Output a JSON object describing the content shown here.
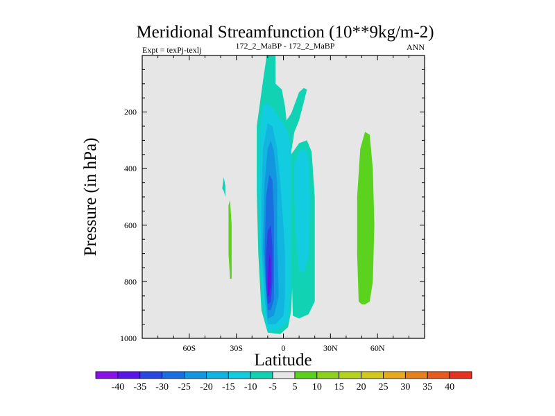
{
  "chart_data": {
    "type": "contour",
    "title": "Meridional Streamfunction (10**9kg/m-2)",
    "subtitle_left": "Expt = texPj-texlj",
    "subtitle_center": "172_2_MaBP - 172_2_MaBP",
    "subtitle_right": "ANN",
    "xlabel": "Latitude",
    "ylabel": "Pressure (in hPa)",
    "xlim": [
      -90,
      90
    ],
    "ylim": [
      1000,
      0
    ],
    "x_ticks": [
      {
        "value": -60,
        "label": "60S"
      },
      {
        "value": -30,
        "label": "30S"
      },
      {
        "value": 0,
        "label": "0"
      },
      {
        "value": 30,
        "label": "30N"
      },
      {
        "value": 60,
        "label": "60N"
      }
    ],
    "y_ticks": [
      {
        "value": 200,
        "label": "200"
      },
      {
        "value": 400,
        "label": "400"
      },
      {
        "value": 600,
        "label": "600"
      },
      {
        "value": 800,
        "label": "800"
      },
      {
        "value": 1000,
        "label": "1000"
      }
    ],
    "colorbar": {
      "levels": [
        "-40",
        "-35",
        "-30",
        "-25",
        "-20",
        "-15",
        "-10",
        "-5",
        "5",
        "10",
        "15",
        "20",
        "25",
        "30",
        "35",
        "40"
      ],
      "colors": [
        "#8a12e6",
        "#5a16e6",
        "#2a45e0",
        "#1a6ee0",
        "#1296e0",
        "#12b4e0",
        "#12cce0",
        "#12d2b4",
        "#e6e6e6",
        "#5ad21e",
        "#8ed21e",
        "#b4d21e",
        "#d2c81e",
        "#e6aa1e",
        "#e6821e",
        "#e65a1e",
        "#e6321e"
      ]
    },
    "contours": [
      {
        "name": "band-neg5",
        "level": -5,
        "color": "#12d2b4",
        "points": [
          [
            -10,
            980
          ],
          [
            -14,
            900
          ],
          [
            -16,
            700
          ],
          [
            -17,
            480
          ],
          [
            -17,
            250
          ],
          [
            -13,
            90
          ],
          [
            -11,
            15
          ],
          [
            -11,
            0
          ],
          [
            -5,
            0
          ],
          [
            -5,
            100
          ],
          [
            -1,
            120
          ],
          [
            1,
            180
          ],
          [
            2,
            230
          ],
          [
            5,
            205
          ],
          [
            10,
            130
          ],
          [
            13,
            115
          ],
          [
            15,
            120
          ],
          [
            13,
            165
          ],
          [
            10,
            230
          ],
          [
            7,
            270
          ],
          [
            5,
            340
          ],
          [
            6,
            450
          ],
          [
            7,
            540
          ],
          [
            5,
            660
          ],
          [
            6,
            760
          ],
          [
            5,
            900
          ],
          [
            3,
            960
          ],
          [
            -2,
            985
          ]
        ]
      },
      {
        "name": "right-lobe",
        "level": -5,
        "color": "#12d2b4",
        "points": [
          [
            5,
            350
          ],
          [
            10,
            310
          ],
          [
            15,
            300
          ],
          [
            18,
            340
          ],
          [
            20,
            500
          ],
          [
            20,
            720
          ],
          [
            20,
            870
          ],
          [
            16,
            915
          ],
          [
            10,
            930
          ],
          [
            6,
            920
          ],
          [
            5,
            700
          ]
        ]
      },
      {
        "name": "left-blob",
        "level": -5,
        "color": "#12d2b4",
        "points": [
          [
            -39,
            470
          ],
          [
            -38,
            430
          ],
          [
            -37,
            460
          ],
          [
            -37,
            500
          ],
          [
            -38,
            480
          ]
        ]
      },
      {
        "name": "band-neg10",
        "level": -10,
        "color": "#12cce0",
        "points": [
          [
            -10,
            975
          ],
          [
            -13,
            880
          ],
          [
            -15,
            680
          ],
          [
            -16,
            450
          ],
          [
            -15,
            260
          ],
          [
            -13,
            175
          ],
          [
            -10,
            170
          ],
          [
            -6,
            190
          ],
          [
            -3,
            220
          ],
          [
            0,
            240
          ],
          [
            3,
            270
          ],
          [
            5,
            340
          ],
          [
            5,
            560
          ],
          [
            5,
            800
          ],
          [
            3,
            940
          ],
          [
            -3,
            970
          ]
        ]
      },
      {
        "name": "right-inner",
        "level": -10,
        "color": "#12cce0",
        "points": [
          [
            7,
            380
          ],
          [
            10,
            340
          ],
          [
            14,
            330
          ],
          [
            16,
            360
          ],
          [
            17,
            520
          ],
          [
            16,
            710
          ],
          [
            13,
            770
          ],
          [
            10,
            760
          ],
          [
            8,
            640
          ],
          [
            7,
            500
          ]
        ]
      },
      {
        "name": "band-neg15",
        "level": -15,
        "color": "#12b4e0",
        "points": [
          [
            -10,
            950
          ],
          [
            -12,
            860
          ],
          [
            -14,
            680
          ],
          [
            -14,
            500
          ],
          [
            -13,
            330
          ],
          [
            -10,
            240
          ],
          [
            -7,
            250
          ],
          [
            -4,
            330
          ],
          [
            -2,
            450
          ],
          [
            0,
            600
          ],
          [
            1,
            700
          ],
          [
            1,
            850
          ],
          [
            0,
            920
          ],
          [
            -5,
            950
          ]
        ]
      },
      {
        "name": "band-neg20",
        "level": -20,
        "color": "#1296e0",
        "points": [
          [
            -10,
            930
          ],
          [
            -11,
            850
          ],
          [
            -13,
            680
          ],
          [
            -12,
            450
          ],
          [
            -10,
            330
          ],
          [
            -8,
            300
          ],
          [
            -6,
            340
          ],
          [
            -4,
            450
          ],
          [
            -4,
            650
          ],
          [
            -3,
            850
          ],
          [
            -6,
            920
          ]
        ]
      },
      {
        "name": "band-neg25",
        "level": -25,
        "color": "#1a6ee0",
        "points": [
          [
            -10,
            900
          ],
          [
            -11,
            820
          ],
          [
            -12,
            700
          ],
          [
            -11,
            500
          ],
          [
            -9,
            420
          ],
          [
            -7,
            440
          ],
          [
            -6,
            560
          ],
          [
            -6,
            730
          ],
          [
            -6,
            860
          ],
          [
            -8,
            900
          ]
        ]
      },
      {
        "name": "band-neg30",
        "level": -30,
        "color": "#2a45e0",
        "points": [
          [
            -10,
            880
          ],
          [
            -11,
            800
          ],
          [
            -11,
            700
          ],
          [
            -10,
            620
          ],
          [
            -8,
            600
          ],
          [
            -7,
            680
          ],
          [
            -7,
            800
          ],
          [
            -8,
            870
          ]
        ]
      },
      {
        "name": "band-neg35",
        "level": -35,
        "color": "#5a16e6",
        "points": [
          [
            -10,
            850
          ],
          [
            -10,
            780
          ],
          [
            -9,
            700
          ],
          [
            -8,
            720
          ],
          [
            -8,
            810
          ],
          [
            -9,
            850
          ]
        ]
      },
      {
        "name": "pos-left-sliver",
        "level": 5,
        "color": "#5ad21e",
        "points": [
          [
            -35,
            530
          ],
          [
            -34,
            510
          ],
          [
            -33,
            600
          ],
          [
            -33,
            790
          ],
          [
            -34,
            790
          ],
          [
            -35,
            700
          ]
        ]
      },
      {
        "name": "pos-right-lobe",
        "level": 5,
        "color": "#5ad21e",
        "points": [
          [
            48,
            870
          ],
          [
            47,
            700
          ],
          [
            47,
            500
          ],
          [
            49,
            330
          ],
          [
            52,
            270
          ],
          [
            55,
            280
          ],
          [
            57,
            400
          ],
          [
            58,
            600
          ],
          [
            57,
            800
          ],
          [
            55,
            870
          ],
          [
            52,
            880
          ],
          [
            50,
            880
          ]
        ]
      }
    ]
  }
}
